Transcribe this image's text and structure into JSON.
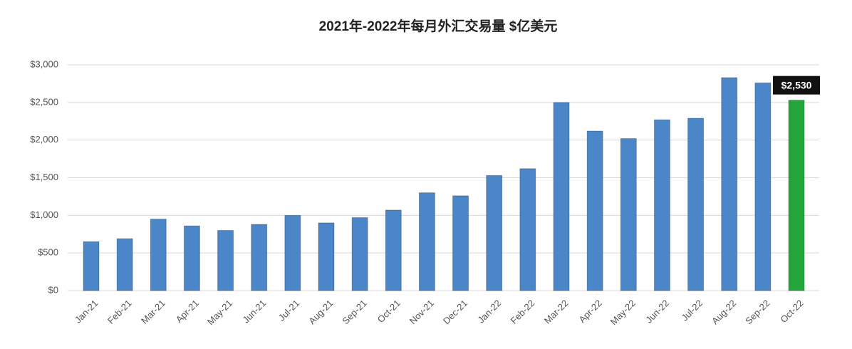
{
  "chart_data": {
    "type": "bar",
    "title": "2021年-2022年每月外汇交易量 $亿美元",
    "categories": [
      "Jan-21",
      "Feb-21",
      "Mar-21",
      "Apr-21",
      "May-21",
      "Jun-21",
      "Jul-21",
      "Aug-21",
      "Sep-21",
      "Oct-21",
      "Nov-21",
      "Dec-21",
      "Jan-22",
      "Feb-22",
      "Mar-22",
      "Apr-22",
      "May-22",
      "Jun-22",
      "Jul-22",
      "Aug-22",
      "Sep-22",
      "Oct-22"
    ],
    "values": [
      650,
      690,
      950,
      860,
      800,
      880,
      1000,
      900,
      970,
      1070,
      1300,
      1260,
      1530,
      1620,
      2500,
      2120,
      2020,
      2270,
      2290,
      2830,
      2760,
      2530
    ],
    "value_labels": [
      null,
      null,
      null,
      null,
      null,
      null,
      null,
      null,
      null,
      null,
      null,
      null,
      null,
      null,
      null,
      null,
      null,
      null,
      null,
      null,
      null,
      "$2,530"
    ],
    "colors": [
      "#4a86c8",
      "#4a86c8",
      "#4a86c8",
      "#4a86c8",
      "#4a86c8",
      "#4a86c8",
      "#4a86c8",
      "#4a86c8",
      "#4a86c8",
      "#4a86c8",
      "#4a86c8",
      "#4a86c8",
      "#4a86c8",
      "#4a86c8",
      "#4a86c8",
      "#4a86c8",
      "#4a86c8",
      "#4a86c8",
      "#4a86c8",
      "#4a86c8",
      "#4a86c8",
      "#22a63a"
    ],
    "ylim": [
      0,
      3000
    ],
    "yticks": [
      {
        "value": 0,
        "label": "$0"
      },
      {
        "value": 500,
        "label": "$500"
      },
      {
        "value": 1000,
        "label": "$1,000"
      },
      {
        "value": 1500,
        "label": "$1,500"
      },
      {
        "value": 2000,
        "label": "$2,000"
      },
      {
        "value": 2500,
        "label": "$2,500"
      },
      {
        "value": 3000,
        "label": "$3,000"
      }
    ],
    "grid": true
  }
}
